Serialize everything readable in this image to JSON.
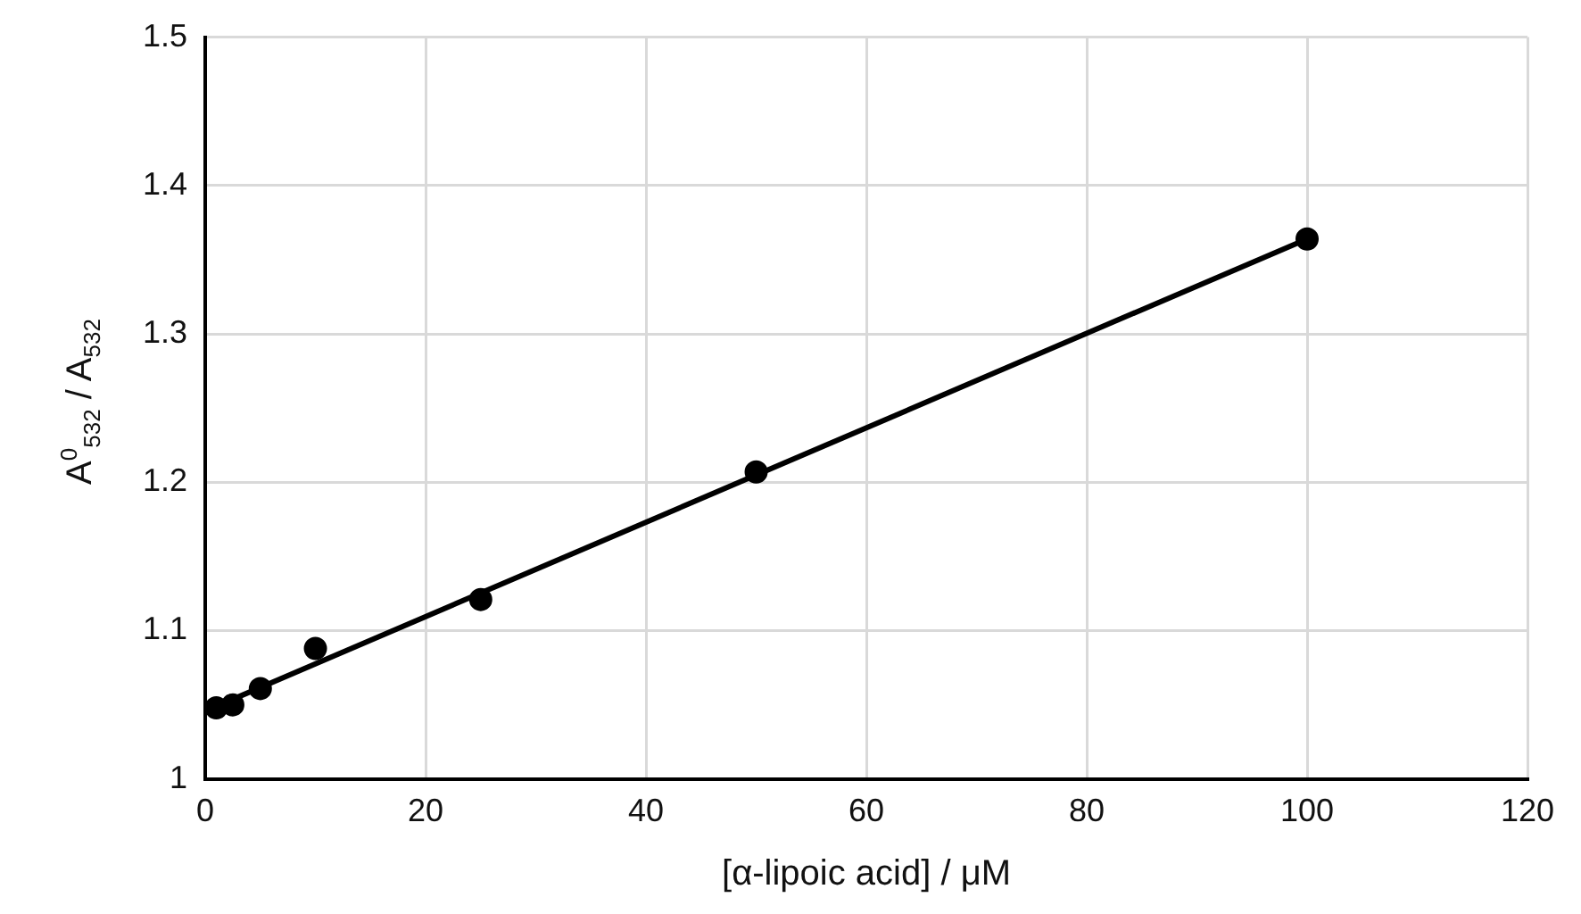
{
  "chart_data": {
    "type": "scatter",
    "xlabel": "[α-lipoic acid] / μM",
    "ylabel": "A$^{0}$$_{532}$ / A$_{532}$",
    "xlim": [
      0,
      120
    ],
    "xticks": [
      0,
      20,
      40,
      60,
      80,
      100,
      120
    ],
    "ylim": [
      1,
      1.5
    ],
    "yticks": [
      1,
      1.1,
      1.2,
      1.3,
      1.4,
      1.5
    ],
    "grid": true,
    "legend": false,
    "series": [
      {
        "type": "scatter",
        "marker": "circle",
        "color": "#000000",
        "x": [
          1,
          2.5,
          5,
          10,
          25,
          50,
          100
        ],
        "values": [
          1.048,
          1.05,
          1.061,
          1.088,
          1.121,
          1.207,
          1.364
        ]
      },
      {
        "type": "line",
        "marker": "none",
        "line_style": "solid",
        "color": "#000000",
        "x": [
          1,
          100
        ],
        "values": [
          1.049,
          1.364
        ]
      }
    ]
  }
}
